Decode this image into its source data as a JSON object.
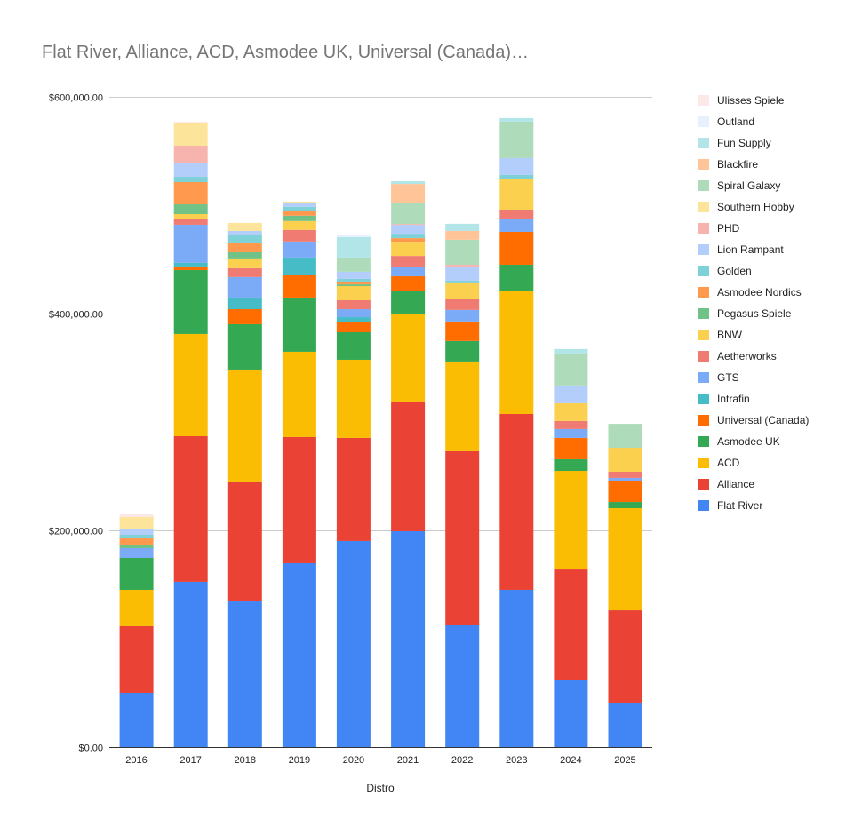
{
  "chart_data": {
    "type": "bar",
    "stacked": true,
    "title": "Flat River, Alliance, ACD, Asmodee UK, Universal (Canada)…",
    "xlabel": "Distro",
    "ylabel": "",
    "ylim": [
      0,
      600000
    ],
    "yticks": [
      0,
      200000,
      400000,
      600000
    ],
    "ytick_labels": [
      "$0.00",
      "$200,000.00",
      "$400,000.00",
      "$600,000.00"
    ],
    "grid": true,
    "legend_position": "right",
    "categories": [
      "2016",
      "2017",
      "2018",
      "2019",
      "2020",
      "2021",
      "2022",
      "2023",
      "2024",
      "2025"
    ],
    "series": [
      {
        "name": "Flat River",
        "color": "#4285f4",
        "values": [
          50000,
          152500,
          134400,
          169700,
          190200,
          199200,
          112300,
          145100,
          62300,
          41000
        ]
      },
      {
        "name": "Alliance",
        "color": "#ea4335",
        "values": [
          61500,
          134400,
          110700,
          116400,
          95100,
          119700,
          160700,
          162300,
          101600,
          85200
        ]
      },
      {
        "name": "ACD",
        "color": "#fbbc04",
        "values": [
          33600,
          94300,
          103300,
          78700,
          72100,
          81100,
          82800,
          113100,
          91000,
          94300
        ]
      },
      {
        "name": "Asmodee UK",
        "color": "#34a853",
        "values": [
          29500,
          59000,
          41800,
          50000,
          25400,
          21300,
          18900,
          24600,
          10700,
          5700
        ]
      },
      {
        "name": "Universal (Canada)",
        "color": "#ff6d01",
        "values": [
          0,
          3300,
          13900,
          20500,
          9800,
          13100,
          18000,
          30300,
          19700,
          19700
        ]
      },
      {
        "name": "Intrafin",
        "color": "#46bdc6",
        "values": [
          0,
          3300,
          10700,
          16400,
          4100,
          0,
          0,
          0,
          0,
          0
        ]
      },
      {
        "name": "GTS",
        "color": "#7baaf7",
        "values": [
          9000,
          35200,
          18900,
          14800,
          7400,
          9000,
          10700,
          11500,
          8200,
          2500
        ]
      },
      {
        "name": "Aetherworks",
        "color": "#f07b72",
        "values": [
          0,
          4900,
          8200,
          10700,
          8200,
          9800,
          9800,
          9000,
          7400,
          5700
        ]
      },
      {
        "name": "BNW",
        "color": "#fcd04f",
        "values": [
          0,
          4900,
          9000,
          8200,
          13100,
          13100,
          15600,
          27900,
          16400,
          22100
        ]
      },
      {
        "name": "Pegasus Spiele",
        "color": "#71c287",
        "values": [
          3300,
          9000,
          5700,
          4900,
          1600,
          0,
          0,
          0,
          0,
          0
        ]
      },
      {
        "name": "Asmodee Nordics",
        "color": "#ff994d",
        "values": [
          5700,
          20500,
          9000,
          4100,
          2500,
          3300,
          0,
          0,
          0,
          0
        ]
      },
      {
        "name": "Golden",
        "color": "#7ed1d7",
        "values": [
          3300,
          4900,
          6600,
          4100,
          2500,
          4100,
          1600,
          4100,
          0,
          0
        ]
      },
      {
        "name": "Lion Rampant",
        "color": "#b3cefb",
        "values": [
          5700,
          13100,
          4100,
          3300,
          6600,
          8200,
          13100,
          15600,
          16400,
          0
        ]
      },
      {
        "name": "PHD",
        "color": "#f7b4ae",
        "values": [
          0,
          15600,
          0,
          0,
          0,
          800,
          1600,
          0,
          0,
          0
        ]
      },
      {
        "name": "Southern Hobby",
        "color": "#fde49b",
        "values": [
          10700,
          21300,
          7400,
          1600,
          0,
          0,
          0,
          0,
          0,
          0
        ]
      },
      {
        "name": "Spiral Galaxy",
        "color": "#aedcba",
        "values": [
          0,
          0,
          0,
          0,
          13100,
          19700,
          23000,
          33600,
          29500,
          22100
        ]
      },
      {
        "name": "Blackfire",
        "color": "#ffc599",
        "values": [
          0,
          0,
          0,
          0,
          0,
          17200,
          8200,
          0,
          0,
          0
        ]
      },
      {
        "name": "Fun Supply",
        "color": "#b2e5e8",
        "values": [
          0,
          0,
          0,
          0,
          18900,
          2500,
          6600,
          3300,
          4100,
          0
        ]
      },
      {
        "name": "Outland",
        "color": "#e8f0fe",
        "values": [
          0,
          0,
          0,
          0,
          2500,
          0,
          0,
          0,
          0,
          0
        ]
      },
      {
        "name": "Ulisses Spiele",
        "color": "#fce8e6",
        "values": [
          2500,
          800,
          0,
          0,
          0,
          0,
          0,
          0,
          0,
          0
        ]
      }
    ]
  }
}
